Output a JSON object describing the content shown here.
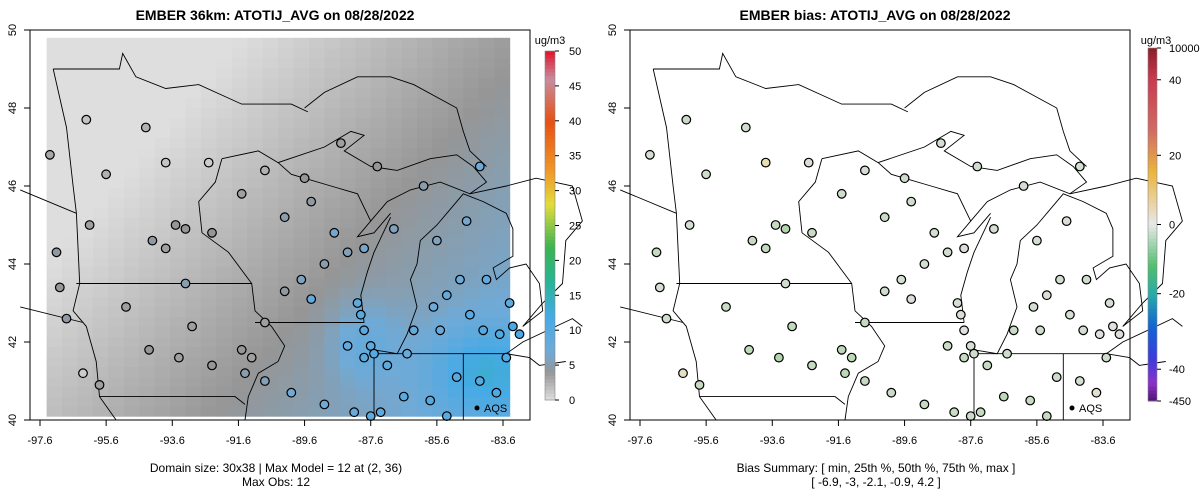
{
  "chart_data": [
    {
      "type": "map",
      "title": "EMBER 36km: ATOTIJ_AVG on 08/28/2022",
      "x_ticks": [
        "-97.6",
        "-95.6",
        "-93.6",
        "-91.6",
        "-89.6",
        "-87.6",
        "-85.6",
        "-83.6"
      ],
      "y_ticks": [
        "40",
        "42",
        "44",
        "46",
        "48",
        "50"
      ],
      "xlim": [
        -98.2,
        -83.2
      ],
      "ylim": [
        40,
        50
      ],
      "colorbar": {
        "unit": "ug/m3",
        "ticks": [
          "0",
          "5",
          "10",
          "15",
          "20",
          "25",
          "30",
          "35",
          "40",
          "45",
          "50"
        ],
        "range": [
          0,
          50
        ]
      },
      "legend": "AQS",
      "caption_line1": "Domain size: 30x38 | Max Model = 12 at (2, 36)",
      "caption_line2": "Max Obs: 12",
      "max_model": 12,
      "max_obs": 12
    },
    {
      "type": "map",
      "title": "EMBER bias: ATOTIJ_AVG on 08/28/2022",
      "x_ticks": [
        "-97.6",
        "-95.6",
        "-93.6",
        "-91.6",
        "-89.6",
        "-87.6",
        "-85.6",
        "-83.6"
      ],
      "y_ticks": [
        "40",
        "42",
        "44",
        "46",
        "48",
        "50"
      ],
      "xlim": [
        -98.2,
        -83.2
      ],
      "ylim": [
        40,
        50
      ],
      "colorbar": {
        "unit": "ug/m3",
        "ticks": [
          "10000",
          "40",
          "20",
          "0",
          "-20",
          "-40",
          "-450"
        ]
      },
      "legend": "AQS",
      "caption_line1": "Bias Summary: [ min, 25th %, 50th %, 75th %, max ]",
      "caption_line2": "[ -6.9,   -3,   -2.1,   -0.9,   4.2 ]",
      "bias_summary": {
        "min": -6.9,
        "p25": -3,
        "p50": -2.1,
        "p75": -0.9,
        "max": 4.2
      }
    }
  ],
  "sites": [
    [
      -97.3,
      46.8,
      3.0,
      -1.5
    ],
    [
      -96.2,
      47.7,
      1.5,
      -2.5
    ],
    [
      -95.6,
      46.3,
      2.5,
      -2
    ],
    [
      -96.1,
      45.0,
      3.5,
      -1.5
    ],
    [
      -97.1,
      44.3,
      4.5,
      -3
    ],
    [
      -97.0,
      43.4,
      4.0,
      -1.5
    ],
    [
      -96.8,
      42.6,
      4.5,
      -2
    ],
    [
      -96.3,
      41.2,
      1.0,
      2.5
    ],
    [
      -95.8,
      40.9,
      3.5,
      -3
    ],
    [
      -95.0,
      42.9,
      3.5,
      -2.5
    ],
    [
      -94.4,
      47.5,
      2.5,
      -2
    ],
    [
      -93.8,
      46.6,
      1.5,
      4.2
    ],
    [
      -94.2,
      44.6,
      4.5,
      -3
    ],
    [
      -93.8,
      44.4,
      3.5,
      -3.5
    ],
    [
      -93.2,
      43.5,
      5.0,
      -2
    ],
    [
      -93.2,
      44.9,
      4.0,
      -5
    ],
    [
      -92.5,
      46.6,
      1.0,
      -1
    ],
    [
      -93.5,
      45.0,
      4.0,
      -3
    ],
    [
      -93.0,
      42.4,
      3.5,
      -3.5
    ],
    [
      -92.4,
      44.8,
      4.0,
      -2.5
    ],
    [
      -91.5,
      41.8,
      4.0,
      -4
    ],
    [
      -91.2,
      41.6,
      3.5,
      -4
    ],
    [
      -90.8,
      42.5,
      3.5,
      -3
    ],
    [
      -90.2,
      43.3,
      4.5,
      -2
    ],
    [
      -89.7,
      43.6,
      6.0,
      -1.5
    ],
    [
      -89.4,
      43.1,
      8.5,
      -1
    ],
    [
      -89.0,
      44.0,
      5.0,
      -1.5
    ],
    [
      -88.3,
      44.3,
      5.5,
      -2
    ],
    [
      -88.0,
      43.0,
      9.0,
      -1.5
    ],
    [
      -87.9,
      42.7,
      10.0,
      -1
    ],
    [
      -87.8,
      42.3,
      9.5,
      -0.5
    ],
    [
      -87.6,
      41.9,
      9.0,
      -1
    ],
    [
      -87.5,
      41.7,
      10.5,
      -2
    ],
    [
      -87.8,
      41.6,
      9.5,
      -3
    ],
    [
      -88.3,
      41.9,
      8.5,
      -2.5
    ],
    [
      -87.1,
      41.4,
      9.0,
      -3
    ],
    [
      -86.5,
      41.7,
      8.0,
      -2
    ],
    [
      -86.3,
      42.3,
      8.5,
      -2.5
    ],
    [
      -85.7,
      42.9,
      7.5,
      -1.5
    ],
    [
      -85.5,
      42.3,
      8.0,
      -2
    ],
    [
      -84.6,
      42.7,
      9.5,
      -1.5
    ],
    [
      -84.2,
      42.3,
      10.5,
      -1.5
    ],
    [
      -83.7,
      42.2,
      11.0,
      -0.5
    ],
    [
      -83.3,
      42.4,
      12.0,
      0.5
    ],
    [
      -83.1,
      42.2,
      11.5,
      -1
    ],
    [
      -84.9,
      43.6,
      7.5,
      -2
    ],
    [
      -85.6,
      44.6,
      6.0,
      -1.5
    ],
    [
      -84.7,
      45.1,
      6.5,
      -1
    ],
    [
      -84.3,
      46.5,
      7.5,
      -1.5
    ],
    [
      -86.0,
      46.0,
      5.0,
      -1.5
    ],
    [
      -87.4,
      46.5,
      4.0,
      -2
    ],
    [
      -88.5,
      47.1,
      3.5,
      -1.5
    ],
    [
      -89.6,
      46.2,
      4.0,
      -2
    ],
    [
      -90.8,
      46.4,
      2.5,
      -1.5
    ],
    [
      -91.5,
      45.8,
      3.5,
      -2
    ],
    [
      -90.2,
      45.2,
      5.0,
      -2.5
    ],
    [
      -89.4,
      45.6,
      4.5,
      -2
    ],
    [
      -88.7,
      44.8,
      6.5,
      -1.5
    ],
    [
      -87.8,
      44.4,
      6.5,
      -1
    ],
    [
      -86.9,
      44.9,
      6.0,
      -1.5
    ],
    [
      -85.3,
      43.2,
      8.5,
      -1
    ],
    [
      -84.1,
      43.6,
      8.5,
      -2
    ],
    [
      -83.4,
      43.0,
      9.0,
      -1.5
    ],
    [
      -83.8,
      40.7,
      11.0,
      1.5
    ],
    [
      -84.3,
      41.0,
      10.0,
      -1.5
    ],
    [
      -85.0,
      41.1,
      9.5,
      -2
    ],
    [
      -85.8,
      40.5,
      10.5,
      -3
    ],
    [
      -86.6,
      40.6,
      9.5,
      -4
    ],
    [
      -87.3,
      40.2,
      9.0,
      -3
    ],
    [
      -88.1,
      40.2,
      8.0,
      -2.5
    ],
    [
      -89.0,
      40.4,
      7.5,
      -3
    ],
    [
      -90.0,
      40.7,
      7.0,
      -2.5
    ],
    [
      -90.8,
      41.0,
      5.5,
      -3
    ],
    [
      -91.4,
      41.2,
      5.0,
      -4
    ],
    [
      -92.4,
      41.4,
      4.0,
      -3
    ],
    [
      -93.4,
      41.6,
      3.5,
      -5
    ],
    [
      -94.3,
      41.8,
      4.0,
      -3.5
    ],
    [
      -83.5,
      41.6,
      10.5,
      -2
    ],
    [
      -85.3,
      40.1,
      9.5,
      -3
    ],
    [
      -87.6,
      40.1,
      8.5,
      -2.5
    ]
  ]
}
